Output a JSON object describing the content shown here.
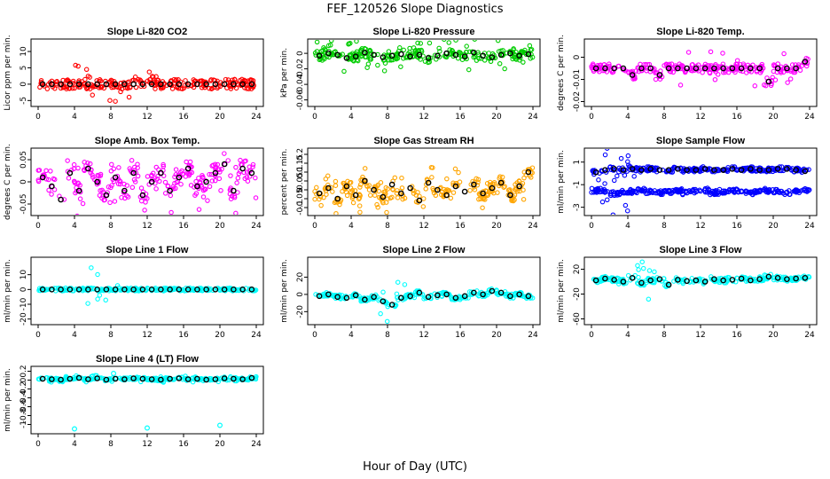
{
  "figure": {
    "title": "FEF_120526  Slope Diagnostics",
    "xlabel": "Hour of Day (UTC)"
  },
  "chart_data": [
    {
      "type": "scatter",
      "title": "Slope Li-820 CO2",
      "ylabel": "Licor ppm per min.",
      "color": "#ff0000",
      "xlim": [
        0,
        24
      ],
      "ylim": [
        -6,
        13
      ],
      "xticks": [
        0,
        4,
        8,
        12,
        16,
        20,
        24
      ],
      "yticks": [
        -5,
        0,
        5,
        10
      ],
      "spread": 3.0,
      "outlier_spread": 6.0,
      "outlier_window": [
        4,
        13
      ],
      "series": [
        {
          "name": "",
          "color": "#000000",
          "x": [
            0.5,
            1.5,
            2.5,
            3.5,
            4.5,
            5.5,
            6.5,
            7.5,
            8.5,
            9.5,
            10.5,
            11.5,
            12.5,
            13.5,
            14.5,
            15.5,
            16.5,
            17.5,
            18.5,
            19.5,
            20.5,
            21.5,
            22.5,
            23.5
          ],
          "y": [
            0,
            0,
            0,
            0,
            0,
            0,
            0,
            0,
            0,
            0,
            0,
            0,
            0,
            0,
            0,
            0,
            0,
            0,
            0,
            0,
            0,
            0,
            0,
            0
          ]
        }
      ]
    },
    {
      "type": "scatter",
      "title": "Slope Li-820 Pressure",
      "ylabel": "kPa per min.",
      "color": "#00cc00",
      "xlim": [
        0,
        24
      ],
      "ylim": [
        -0.065,
        0.015
      ],
      "xticks": [
        0,
        4,
        8,
        12,
        16,
        20,
        24
      ],
      "yticks": [
        -0.06,
        -0.04,
        -0.02,
        0.0
      ],
      "spread": 0.012,
      "outlier_spread": 0.02,
      "outlier_window": [
        0,
        24
      ],
      "series": [
        {
          "name": "",
          "color": "#000000",
          "x": [
            0.5,
            1.5,
            2.5,
            3.5,
            4.5,
            5.5,
            6.5,
            7.5,
            8.5,
            9.5,
            10.5,
            11.5,
            12.5,
            13.5,
            14.5,
            15.5,
            16.5,
            17.5,
            18.5,
            19.5,
            20.5,
            21.5,
            22.5,
            23.5
          ],
          "y": [
            -0.003,
            0.0,
            -0.002,
            -0.006,
            -0.004,
            0.001,
            -0.002,
            -0.005,
            -0.003,
            -0.001,
            -0.004,
            -0.002,
            -0.006,
            -0.003,
            0.0,
            -0.002,
            -0.004,
            0.001,
            -0.003,
            -0.005,
            -0.002,
            0.0,
            -0.003,
            -0.001
          ]
        }
      ]
    },
    {
      "type": "scatter",
      "title": "Slope Li-820 Temp.",
      "ylabel": "degrees C per min.",
      "color": "#ff00ff",
      "xlim": [
        0,
        24
      ],
      "ylim": [
        -0.021,
        0.007
      ],
      "xticks": [
        0,
        4,
        8,
        12,
        16,
        20,
        24
      ],
      "yticks": [
        -0.02,
        -0.01,
        0.0
      ],
      "spread": 0.004,
      "outlier_spread": 0.008,
      "outlier_window": [
        9,
        22
      ],
      "series": [
        {
          "name": "",
          "color": "#000000",
          "x": [
            0.5,
            1.5,
            2.5,
            3.5,
            4.5,
            5.5,
            6.5,
            7.5,
            8.5,
            9.5,
            10.5,
            11.5,
            12.5,
            13.5,
            14.5,
            15.5,
            16.5,
            17.5,
            18.5,
            19.5,
            20.5,
            21.5,
            22.5,
            23.5
          ],
          "y": [
            -0.005,
            -0.005,
            -0.005,
            -0.005,
            -0.008,
            -0.005,
            -0.005,
            -0.008,
            -0.005,
            -0.005,
            -0.005,
            -0.005,
            -0.005,
            -0.005,
            -0.005,
            -0.005,
            -0.005,
            -0.005,
            -0.005,
            -0.011,
            -0.005,
            -0.005,
            -0.005,
            -0.002
          ]
        }
      ]
    },
    {
      "type": "scatter",
      "title": "Slope Amb. Box Temp.",
      "ylabel": "degrees C per min.",
      "color": "#ff00ff",
      "xlim": [
        0,
        24
      ],
      "ylim": [
        -0.07,
        0.07
      ],
      "xticks": [
        0,
        4,
        8,
        12,
        16,
        20,
        24
      ],
      "yticks": [
        -0.05,
        0.0,
        0.05
      ],
      "spread": 0.04,
      "outlier_spread": 0.06,
      "outlier_window": [
        0,
        24
      ],
      "series": [
        {
          "name": "",
          "color": "#000000",
          "x": [
            0.5,
            1.5,
            2.5,
            3.5,
            4.5,
            5.5,
            6.5,
            7.5,
            8.5,
            9.5,
            10.5,
            11.5,
            12.5,
            13.5,
            14.5,
            15.5,
            16.5,
            17.5,
            18.5,
            19.5,
            20.5,
            21.5,
            22.5,
            23.5
          ],
          "y": [
            0.01,
            -0.01,
            -0.04,
            0.02,
            -0.02,
            0.03,
            0.0,
            -0.03,
            0.01,
            -0.02,
            0.02,
            -0.03,
            0.0,
            0.02,
            -0.02,
            0.01,
            0.03,
            -0.01,
            0.0,
            0.02,
            0.04,
            -0.02,
            0.03,
            0.02
          ]
        }
      ]
    },
    {
      "type": "scatter",
      "title": "Slope Gas Stream RH",
      "ylabel": "percent per min.",
      "color": "#ffa500",
      "xlim": [
        0,
        24
      ],
      "ylim": [
        -0.13,
        0.22
      ],
      "xticks": [
        0,
        4,
        8,
        12,
        16,
        20,
        24
      ],
      "yticks": [
        -0.1,
        -0.05,
        0.0,
        0.05,
        0.1,
        0.15,
        0.2
      ],
      "spread": 0.07,
      "outlier_spread": 0.1,
      "outlier_window": [
        0,
        24
      ],
      "series": [
        {
          "name": "",
          "color": "#000000",
          "x": [
            0.5,
            1.5,
            2.5,
            3.5,
            4.5,
            5.5,
            6.5,
            7.5,
            8.5,
            9.5,
            10.5,
            11.5,
            12.5,
            13.5,
            14.5,
            15.5,
            16.5,
            17.5,
            18.5,
            19.5,
            20.5,
            21.5,
            22.5,
            23.5
          ],
          "y": [
            -0.02,
            0.01,
            -0.05,
            0.02,
            -0.03,
            0.05,
            0.0,
            -0.04,
            0.03,
            -0.02,
            0.01,
            -0.06,
            0.04,
            0.0,
            -0.03,
            0.02,
            -0.01,
            0.03,
            -0.02,
            0.01,
            0.04,
            -0.03,
            0.02,
            0.1
          ]
        }
      ]
    },
    {
      "type": "scatter",
      "title": "Slope Sample Flow",
      "ylabel": "ml/min per min.",
      "color": "#0000ff",
      "xlim": [
        0,
        24
      ],
      "ylim": [
        -3.5,
        2.0
      ],
      "xticks": [
        0,
        4,
        8,
        12,
        16,
        20,
        24
      ],
      "yticks": [
        -3,
        -1,
        1
      ],
      "spread": 0.4,
      "outlier_spread": 2.5,
      "outlier_window": [
        0,
        5
      ],
      "series": [
        {
          "name": "",
          "color": "#000000",
          "x": [
            0.5,
            1.5,
            2.5,
            3.5,
            4.5,
            5.5,
            6.5,
            7.5,
            8.5,
            9.5,
            10.5,
            11.5,
            12.5,
            13.5,
            14.5,
            15.5,
            16.5,
            17.5,
            18.5,
            19.5,
            20.5,
            21.5,
            22.5,
            23.5
          ],
          "y": [
            0.1,
            0.3,
            0.4,
            0.3,
            0.4,
            0.3,
            0.4,
            0.3,
            0.3,
            0.4,
            0.3,
            0.3,
            0.4,
            0.3,
            0.3,
            0.4,
            0.3,
            0.4,
            0.3,
            0.3,
            0.4,
            0.4,
            0.3,
            0.2
          ]
        },
        {
          "name": "",
          "color": "#0000ff",
          "x": [
            0.5,
            1.5,
            2.5,
            3.5,
            4.5,
            5.5,
            6.5,
            7.5,
            8.5,
            9.5,
            10.5,
            11.5,
            12.5,
            13.5,
            14.5,
            15.5,
            16.5,
            17.5,
            18.5,
            19.5,
            20.5,
            21.5,
            22.5,
            23.5
          ],
          "y": [
            -1.5,
            -1.6,
            -1.8,
            -1.7,
            -1.6,
            -1.5,
            -1.6,
            -1.7,
            -1.6,
            -1.5,
            -1.7,
            -1.6,
            -1.5,
            -1.7,
            -1.6,
            -1.5,
            -1.6,
            -1.7,
            -1.6,
            -1.5,
            -1.6,
            -1.7,
            -1.6,
            -1.5
          ]
        }
      ]
    },
    {
      "type": "scatter",
      "title": "Slope Line 1 Flow",
      "ylabel": "ml/min per min.",
      "color": "#00ffff",
      "xlim": [
        0,
        24
      ],
      "ylim": [
        -22,
        20
      ],
      "xticks": [
        0,
        4,
        8,
        12,
        16,
        20,
        24
      ],
      "yticks": [
        -20,
        -10,
        0,
        10
      ],
      "spread": 2.0,
      "outlier_spread": 15.0,
      "outlier_window": [
        5,
        9
      ],
      "series": [
        {
          "name": "",
          "color": "#000000",
          "x": [
            0.5,
            1.5,
            2.5,
            3.5,
            4.5,
            5.5,
            6.5,
            7.5,
            8.5,
            9.5,
            10.5,
            11.5,
            12.5,
            13.5,
            14.5,
            15.5,
            16.5,
            17.5,
            18.5,
            19.5,
            20.5,
            21.5,
            22.5,
            23.5
          ],
          "y": [
            0,
            0,
            0,
            0,
            0,
            0,
            0,
            0,
            0,
            0,
            0,
            0,
            0,
            0,
            0,
            0,
            0,
            0,
            0,
            0,
            0,
            0,
            0,
            0
          ]
        }
      ]
    },
    {
      "type": "scatter",
      "title": "Slope Line 2 Flow",
      "ylabel": "ml/min per min.",
      "color": "#00ffff",
      "xlim": [
        0,
        24
      ],
      "ylim": [
        -32,
        40
      ],
      "xticks": [
        0,
        4,
        8,
        12,
        16,
        20,
        24
      ],
      "yticks": [
        -20,
        0,
        20
      ],
      "spread": 5.0,
      "outlier_spread": 25.0,
      "outlier_window": [
        7,
        10
      ],
      "series": [
        {
          "name": "",
          "color": "#000000",
          "x": [
            0.5,
            1.5,
            2.5,
            3.5,
            4.5,
            5.5,
            6.5,
            7.5,
            8.5,
            9.5,
            10.5,
            11.5,
            12.5,
            13.5,
            14.5,
            15.5,
            16.5,
            17.5,
            18.5,
            19.5,
            20.5,
            21.5,
            22.5,
            23.5
          ],
          "y": [
            -2,
            0,
            -3,
            -4,
            -1,
            -6,
            -3,
            -8,
            -12,
            -4,
            -2,
            2,
            -3,
            -1,
            0,
            -4,
            -2,
            2,
            0,
            4,
            2,
            -2,
            0,
            -2
          ]
        }
      ]
    },
    {
      "type": "scatter",
      "title": "Slope Line 3 Flow",
      "ylabel": "ml/min per min.",
      "color": "#00ffff",
      "xlim": [
        0,
        24
      ],
      "ylim": [
        -65,
        35
      ],
      "xticks": [
        0,
        4,
        8,
        12,
        16,
        20,
        24
      ],
      "yticks": [
        -60,
        -20,
        20
      ],
      "spread": 8.0,
      "outlier_spread": 35.0,
      "outlier_window": [
        5,
        9
      ],
      "series": [
        {
          "name": "",
          "color": "#000000",
          "x": [
            0.5,
            1.5,
            2.5,
            3.5,
            4.5,
            5.5,
            6.5,
            7.5,
            8.5,
            9.5,
            10.5,
            11.5,
            12.5,
            13.5,
            14.5,
            15.5,
            16.5,
            17.5,
            18.5,
            19.5,
            20.5,
            21.5,
            22.5,
            23.5
          ],
          "y": [
            2,
            5,
            3,
            0,
            6,
            -2,
            2,
            4,
            -5,
            3,
            1,
            2,
            0,
            4,
            2,
            3,
            5,
            2,
            4,
            8,
            6,
            4,
            5,
            6
          ]
        }
      ]
    },
    {
      "type": "scatter",
      "title": "Slope Line 4 (LT) Flow",
      "ylabel": "ml/min per min.",
      "color": "#00ffff",
      "xlim": [
        0,
        24
      ],
      "ylim": [
        -1.15,
        0.25
      ],
      "xticks": [
        0,
        4,
        8,
        12,
        16,
        20,
        24
      ],
      "yticks": [
        -1.0,
        -0.8,
        -0.6,
        -0.4,
        -0.2,
        0.0,
        0.2
      ],
      "spread": 0.06,
      "outlier_spread": 0.08,
      "outlier_window": [
        0,
        24
      ],
      "outliers": [
        [
          4.0,
          -1.1
        ],
        [
          12.0,
          -1.08
        ],
        [
          20.0,
          -1.02
        ],
        [
          8.3,
          0.15
        ]
      ],
      "series": [
        {
          "name": "",
          "color": "#000000",
          "x": [
            0.5,
            1.5,
            2.5,
            3.5,
            4.5,
            5.5,
            6.5,
            7.5,
            8.5,
            9.5,
            10.5,
            11.5,
            12.5,
            13.5,
            14.5,
            15.5,
            16.5,
            17.5,
            18.5,
            19.5,
            20.5,
            21.5,
            22.5,
            23.5
          ],
          "y": [
            0.03,
            0.02,
            0.01,
            0.03,
            0.05,
            0.02,
            0.04,
            0.01,
            0.03,
            0.02,
            0.04,
            0.03,
            0.02,
            0.01,
            0.03,
            0.04,
            0.02,
            0.03,
            0.01,
            0.02,
            0.04,
            0.03,
            0.02,
            0.05
          ]
        }
      ]
    }
  ]
}
